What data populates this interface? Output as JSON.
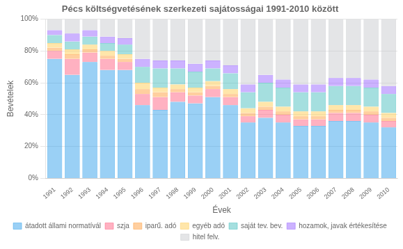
{
  "chart_data": {
    "type": "bar",
    "title": "Pécs költségvetésének szerkezeti sajátosságai 1991-2010 között",
    "x_label": "Évek",
    "y_label": "Bevételek",
    "categories": [
      "1991",
      "1992",
      "1993",
      "1994",
      "1995",
      "1996",
      "1997",
      "1998",
      "1999",
      "2000",
      "2001",
      "2002",
      "2003",
      "2004",
      "2005",
      "2006",
      "2007",
      "2008",
      "2009",
      "2010"
    ],
    "series": [
      {
        "name": "átadott állami normatívál",
        "values": [
          75,
          65,
          73,
          68,
          68,
          46,
          43,
          48,
          47,
          51,
          46,
          35,
          38,
          35,
          33,
          33,
          36,
          36,
          35,
          32
        ]
      },
      {
        "name": "szja",
        "values": [
          5,
          10,
          6,
          7,
          5,
          7,
          8,
          6,
          5,
          5,
          5,
          4,
          5,
          5,
          4,
          4,
          5,
          5,
          5,
          4
        ]
      },
      {
        "name": "iparű. adó",
        "values": [
          2,
          3,
          2,
          2,
          2,
          3,
          3,
          2,
          2,
          2,
          2,
          2,
          2,
          2,
          2,
          2,
          2,
          2,
          2,
          2
        ]
      },
      {
        "name": "egyéb adó",
        "values": [
          3,
          3,
          3,
          3,
          3,
          4,
          3,
          3,
          3,
          3,
          3,
          3,
          3,
          3,
          3,
          3,
          3,
          3,
          3,
          3
        ]
      },
      {
        "name": "saját tev. bev.",
        "values": [
          5,
          5,
          5,
          5,
          6,
          10,
          12,
          10,
          10,
          8,
          10,
          10,
          12,
          12,
          12,
          12,
          12,
          12,
          12,
          12
        ]
      },
      {
        "name": "hozamok, javak értékesítése",
        "values": [
          3,
          5,
          4,
          4,
          4,
          5,
          5,
          5,
          5,
          5,
          5,
          5,
          5,
          5,
          5,
          5,
          5,
          5,
          5,
          5
        ]
      },
      {
        "name": "hitel felv.",
        "values": [
          7,
          9,
          7,
          11,
          12,
          25,
          26,
          26,
          28,
          26,
          29,
          41,
          35,
          38,
          41,
          41,
          37,
          37,
          38,
          42
        ]
      }
    ],
    "stacked": true,
    "ylim": [
      0,
      100
    ],
    "yticks": [
      {
        "value": 0,
        "label": "0%"
      },
      {
        "value": 20,
        "label": "20%"
      },
      {
        "value": 40,
        "label": "40%"
      },
      {
        "value": 60,
        "label": "60%"
      },
      {
        "value": 80,
        "label": "80%"
      },
      {
        "value": 100,
        "label": "100%"
      }
    ],
    "grid": true,
    "legend": "bottom"
  }
}
